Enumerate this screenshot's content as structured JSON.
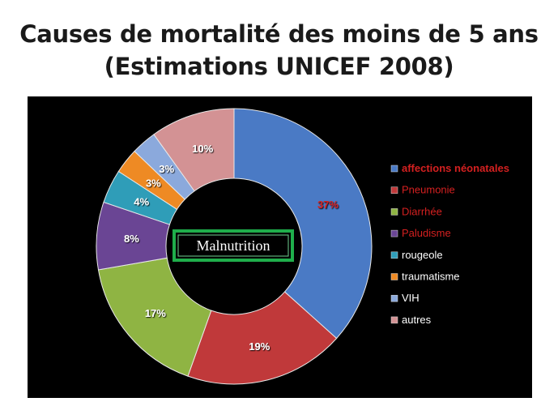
{
  "slide": {
    "title_line1": "Causes de mortalité des moins de 5 ans",
    "title_line2": "(Estimations UNICEF 2008)"
  },
  "chart_data": {
    "type": "pie",
    "variant": "donut",
    "title": "",
    "center_label": "Malnutrition",
    "center_label_color": "#ffffff",
    "center_label_border": "#1fae4b",
    "background": "#000000",
    "legend_position": "right",
    "slices": [
      {
        "label": "affections néonatales",
        "value": 37,
        "display": "37%",
        "color": "#4a7ac5",
        "legend_color": "#d42020",
        "legend_bold": true,
        "value_color": "#d42020"
      },
      {
        "label": "Pneumonie",
        "value": 19,
        "display": "19%",
        "color": "#c0393a",
        "legend_color": "#d42020",
        "legend_bold": false,
        "value_color": "#ffffff"
      },
      {
        "label": "Diarrhée",
        "value": 17,
        "display": "17%",
        "color": "#8fb443",
        "legend_color": "#d42020",
        "legend_bold": false,
        "value_color": "#ffffff"
      },
      {
        "label": "Paludisme",
        "value": 8,
        "display": "8%",
        "color": "#6a4594",
        "legend_color": "#d42020",
        "legend_bold": false,
        "value_color": "#ffffff"
      },
      {
        "label": "rougeole",
        "value": 4,
        "display": "4%",
        "color": "#2f9db8",
        "legend_color": "#ffffff",
        "legend_bold": false,
        "value_color": "#ffffff"
      },
      {
        "label": "traumatisme",
        "value": 3,
        "display": "3%",
        "color": "#ee8a24",
        "legend_color": "#ffffff",
        "legend_bold": false,
        "value_color": "#ffffff"
      },
      {
        "label": "VIH",
        "value": 3,
        "display": "3%",
        "color": "#8ba9dc",
        "legend_color": "#ffffff",
        "legend_bold": false,
        "value_color": "#ffffff"
      },
      {
        "label": "autres",
        "value": 10,
        "display": "10%",
        "color": "#d39294",
        "legend_color": "#ffffff",
        "legend_bold": false,
        "value_color": "#ffffff"
      }
    ]
  }
}
